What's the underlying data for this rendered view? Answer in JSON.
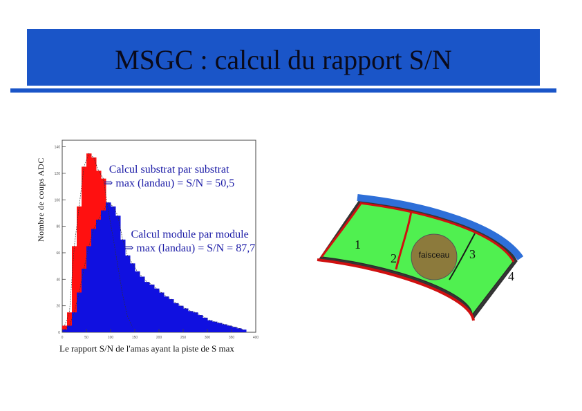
{
  "title": "MSGC : calcul du rapport S/N",
  "colors": {
    "title_bg": "#1a55c8",
    "red_series": "#ff1010",
    "blue_series": "#1010e0",
    "annotation": "#1a1aa6",
    "module_fill": "#50f050",
    "beam_fill": "#8c7a3c"
  },
  "annotations": {
    "substrat": {
      "line1": "Calcul substrat par substrat",
      "line2": "⇒ max (landau) = S/N = 50,5"
    },
    "module": {
      "line1": "Calcul module par module",
      "line2": "⇒ max (landau) = S/N = 87,7"
    }
  },
  "chart_data": {
    "type": "bar",
    "ylabel": "Nombre de coups ADC",
    "xlabel": "Le rapport S/N de l'amas ayant la piste de S max",
    "xlim": [
      0,
      400
    ],
    "ylim": [
      0,
      145
    ],
    "xticks": [
      0,
      50,
      100,
      150,
      200,
      250,
      300,
      350,
      400
    ],
    "xtick_labels": [
      "0",
      "50",
      "100",
      "150",
      "200",
      "250",
      "300",
      "350",
      "400"
    ],
    "yticks": [
      0,
      20,
      40,
      60,
      80,
      100,
      120,
      140
    ],
    "ytick_labels": [
      "0",
      "20",
      "40",
      "60",
      "80",
      "100",
      "120",
      "140"
    ],
    "series": [
      {
        "color": "#ff1010",
        "x": [
          5,
          15,
          25,
          35,
          45,
          55,
          65,
          75,
          85,
          95,
          105,
          115,
          125,
          135,
          145
        ],
        "values": [
          5,
          15,
          65,
          95,
          125,
          135,
          132,
          122,
          116,
          92,
          72,
          50,
          28,
          12,
          4
        ]
      },
      {
        "color": "#1010e0",
        "x": [
          5,
          15,
          25,
          35,
          45,
          55,
          65,
          75,
          85,
          95,
          105,
          115,
          125,
          135,
          145,
          155,
          165,
          175,
          185,
          195,
          205,
          215,
          225,
          235,
          245,
          255,
          265,
          275,
          285,
          295,
          305,
          315,
          325,
          335,
          345,
          355,
          365,
          375
        ],
        "values": [
          2,
          5,
          15,
          30,
          48,
          65,
          78,
          85,
          92,
          98,
          95,
          88,
          70,
          58,
          52,
          46,
          42,
          38,
          36,
          33,
          30,
          27,
          25,
          22,
          20,
          18,
          16,
          15,
          13,
          11,
          9,
          8,
          7,
          6,
          5,
          4,
          3,
          2
        ]
      }
    ]
  },
  "detector": {
    "labels": [
      "1",
      "2",
      "3",
      "4"
    ],
    "beam_label": "faisceau"
  }
}
